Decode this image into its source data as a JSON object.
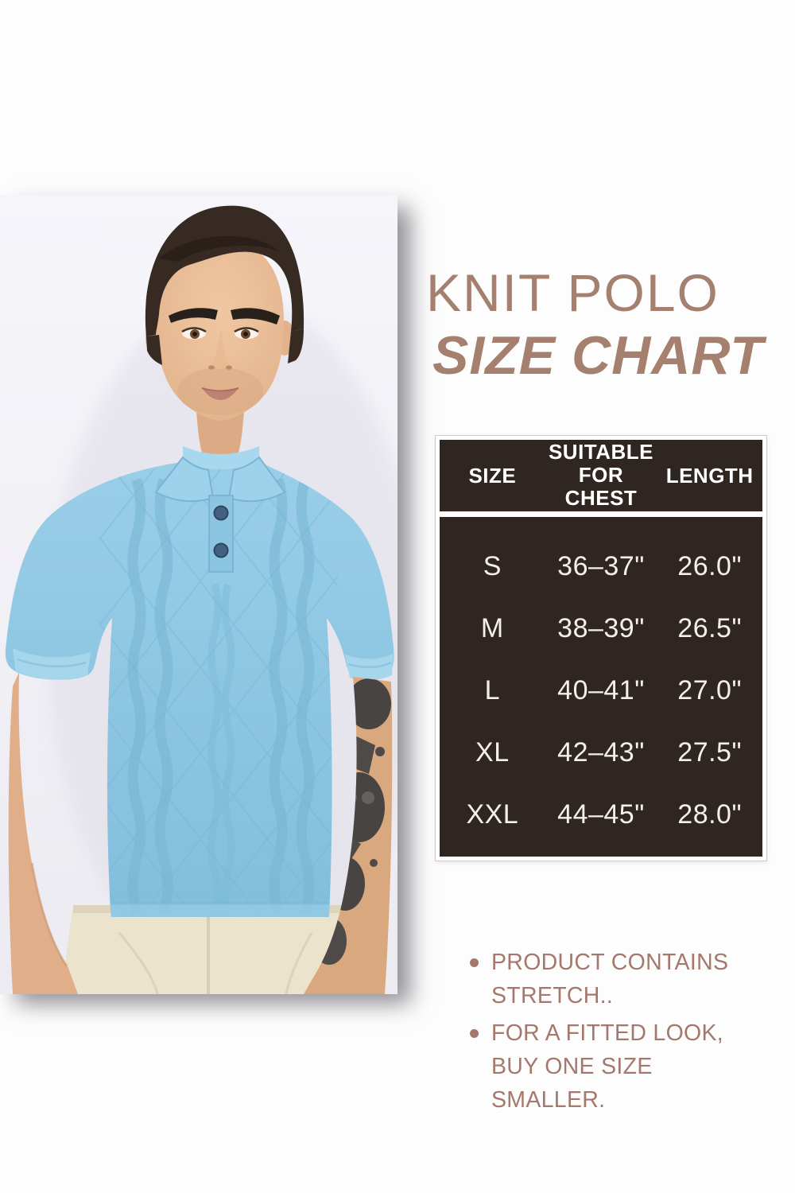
{
  "page": {
    "background": "#fdfdfd"
  },
  "title": {
    "line1": "KNIT POLO",
    "line2": "SIZE CHART",
    "color": "#a6806f"
  },
  "size_table": {
    "background": "#2f2521",
    "header_text_color": "#ffffff",
    "body_text_color": "#f4efec",
    "headers": {
      "size": "SIZE",
      "chest": "SUITABLE FOR CHEST",
      "length": "LENGTH"
    },
    "rows": [
      {
        "size": "S",
        "chest": "36–37\"",
        "length": "26.0\""
      },
      {
        "size": "M",
        "chest": "38–39\"",
        "length": "26.5\""
      },
      {
        "size": "L",
        "chest": "40–41\"",
        "length": "27.0\""
      },
      {
        "size": "XL",
        "chest": "42–43\"",
        "length": "27.5\""
      },
      {
        "size": "XXL",
        "chest": "44–45\"",
        "length": "28.0\""
      }
    ]
  },
  "notes": {
    "color": "#a4786c",
    "items": [
      "PRODUCT CONTAINS STRETCH..",
      "FOR A FITTED LOOK, BUY ONE SIZE SMALLER."
    ]
  },
  "photo": {
    "description": "man wearing light blue cable-knit polo shirt and cream pants",
    "shirt_color": "#8cc6e2",
    "pants_color": "#ece3cd",
    "backdrop_color": "#f2f1f6"
  }
}
